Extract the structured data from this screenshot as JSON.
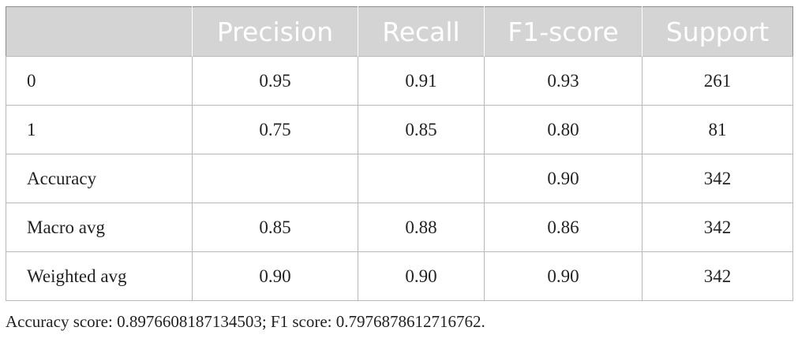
{
  "table": {
    "header": [
      null,
      "Precision",
      "Recall",
      "F1-score",
      "Support"
    ],
    "rows": [
      [
        "0",
        "0.95",
        "0.91",
        "0.93",
        "261"
      ],
      [
        "1",
        "0.75",
        "0.85",
        "0.80",
        "81"
      ],
      [
        "Accuracy",
        null,
        null,
        "0.90",
        "342"
      ],
      [
        "Macro avg",
        "0.85",
        "0.88",
        "0.86",
        "342"
      ],
      [
        "Weighted avg",
        "0.90",
        "0.90",
        "0.90",
        "342"
      ]
    ]
  },
  "footnote": "Accuracy score: 0.8976608187134503; F1 score: 0.7976878612716762."
}
